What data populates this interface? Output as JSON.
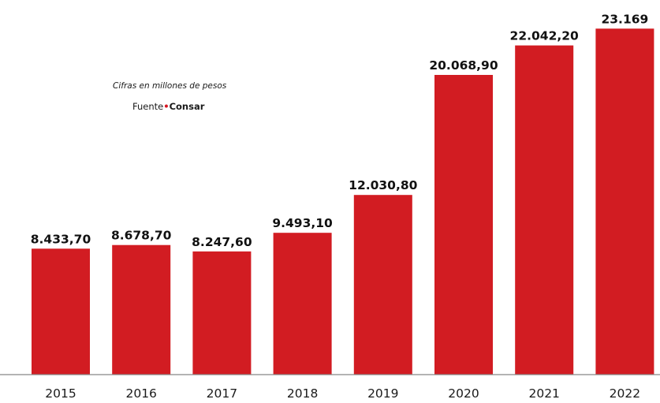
{
  "note": "Cifras en millones de pesos",
  "source": {
    "label": "Fuente",
    "separator": "•",
    "name": "Consar"
  },
  "colors": {
    "bar": "#d21c22",
    "axis": "#888888",
    "text": "#1a1a1a",
    "accent": "#d6141e"
  },
  "chart_data": {
    "type": "bar",
    "title": "",
    "xlabel": "",
    "ylabel": "",
    "categories": [
      "2015",
      "2016",
      "2017",
      "2018",
      "2019",
      "2020",
      "2021",
      "2022"
    ],
    "values": [
      8433.7,
      8678.7,
      8247.6,
      9493.1,
      12030.8,
      20068.9,
      22042.2,
      23169
    ],
    "value_labels": [
      "8.433,70",
      "8.678,70",
      "8.247,60",
      "9.493,10",
      "12.030,80",
      "20.068,90",
      "22.042,20",
      "23.169"
    ],
    "ylim": [
      0,
      23500
    ],
    "grid": false,
    "legend": "none"
  }
}
